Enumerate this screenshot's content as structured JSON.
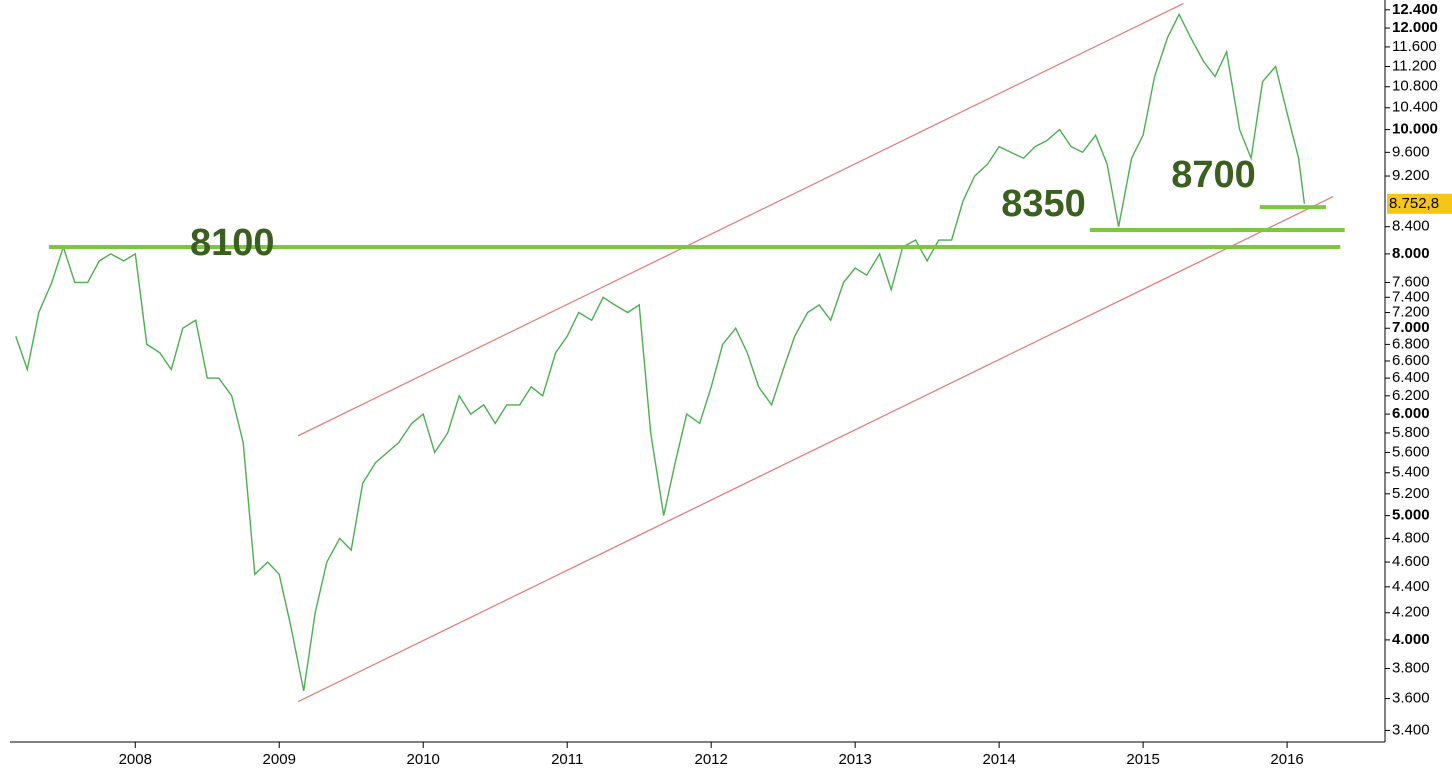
{
  "chart_data": {
    "type": "line",
    "log_scale": true,
    "xlim": [
      2007.13,
      2016.68
    ],
    "xticks": [
      2008,
      2009,
      2010,
      2011,
      2012,
      2013,
      2014,
      2015,
      2016
    ],
    "ylim": [
      3330,
      12620
    ],
    "yticks": [
      {
        "value": 3400,
        "label": "3.400"
      },
      {
        "value": 3600,
        "label": "3.600"
      },
      {
        "value": 3800,
        "label": "3.800"
      },
      {
        "value": 4000,
        "label": "4.000"
      },
      {
        "value": 4200,
        "label": "4.200"
      },
      {
        "value": 4400,
        "label": "4.400"
      },
      {
        "value": 4600,
        "label": "4.600"
      },
      {
        "value": 4800,
        "label": "4.800"
      },
      {
        "value": 5000,
        "label": "5.000"
      },
      {
        "value": 5200,
        "label": "5.200"
      },
      {
        "value": 5400,
        "label": "5.400"
      },
      {
        "value": 5600,
        "label": "5.600"
      },
      {
        "value": 5800,
        "label": "5.800"
      },
      {
        "value": 6000,
        "label": "6.000"
      },
      {
        "value": 6200,
        "label": "6.200"
      },
      {
        "value": 6400,
        "label": "6.400"
      },
      {
        "value": 6600,
        "label": "6.600"
      },
      {
        "value": 6800,
        "label": "6.800"
      },
      {
        "value": 7000,
        "label": "7.000"
      },
      {
        "value": 7200,
        "label": "7.200"
      },
      {
        "value": 7400,
        "label": "7.400"
      },
      {
        "value": 7600,
        "label": "7.600"
      },
      {
        "value": 8000,
        "label": "8.000"
      },
      {
        "value": 8400,
        "label": "8.400"
      },
      {
        "value": 9200,
        "label": "9.200"
      },
      {
        "value": 9600,
        "label": "9.600"
      },
      {
        "value": 10000,
        "label": "10.000"
      },
      {
        "value": 10400,
        "label": "10.400"
      },
      {
        "value": 10800,
        "label": "10.800"
      },
      {
        "value": 11200,
        "label": "11.200"
      },
      {
        "value": 11600,
        "label": "11.600"
      },
      {
        "value": 12000,
        "label": "12.000"
      },
      {
        "value": 12400,
        "label": "12.400"
      }
    ],
    "x": [
      2007.17,
      2007.25,
      2007.33,
      2007.42,
      2007.5,
      2007.58,
      2007.67,
      2007.75,
      2007.83,
      2007.92,
      2008.0,
      2008.08,
      2008.17,
      2008.25,
      2008.33,
      2008.42,
      2008.5,
      2008.58,
      2008.67,
      2008.75,
      2008.83,
      2008.92,
      2009.0,
      2009.08,
      2009.17,
      2009.25,
      2009.33,
      2009.42,
      2009.5,
      2009.58,
      2009.67,
      2009.75,
      2009.83,
      2009.92,
      2010.0,
      2010.08,
      2010.17,
      2010.25,
      2010.33,
      2010.42,
      2010.5,
      2010.58,
      2010.67,
      2010.75,
      2010.83,
      2010.92,
      2011.0,
      2011.08,
      2011.17,
      2011.25,
      2011.33,
      2011.42,
      2011.5,
      2011.58,
      2011.67,
      2011.75,
      2011.83,
      2011.92,
      2012.0,
      2012.08,
      2012.17,
      2012.25,
      2012.33,
      2012.42,
      2012.5,
      2012.58,
      2012.67,
      2012.75,
      2012.83,
      2012.92,
      2013.0,
      2013.08,
      2013.17,
      2013.25,
      2013.33,
      2013.42,
      2013.5,
      2013.58,
      2013.67,
      2013.75,
      2013.83,
      2013.92,
      2014.0,
      2014.08,
      2014.17,
      2014.25,
      2014.33,
      2014.42,
      2014.5,
      2014.58,
      2014.67,
      2014.75,
      2014.83,
      2014.92,
      2015.0,
      2015.08,
      2015.17,
      2015.25,
      2015.33,
      2015.42,
      2015.5,
      2015.58,
      2015.67,
      2015.75,
      2015.83,
      2015.92,
      2016.0,
      2016.08,
      2016.12
    ],
    "series": [
      {
        "color": "#4caf50",
        "values": [
          6900,
          6500,
          7200,
          7600,
          8100,
          7600,
          7600,
          7900,
          8000,
          7900,
          8000,
          6800,
          6700,
          6500,
          7000,
          7100,
          6400,
          6400,
          6200,
          5700,
          4500,
          4600,
          4500,
          4100,
          3650,
          4200,
          4600,
          4800,
          4700,
          5300,
          5500,
          5600,
          5700,
          5900,
          6000,
          5600,
          5800,
          6200,
          6000,
          6100,
          5900,
          6100,
          6100,
          6300,
          6200,
          6700,
          6900,
          7200,
          7100,
          7400,
          7300,
          7200,
          7300,
          5800,
          5000,
          5500,
          6000,
          5900,
          6300,
          6800,
          7000,
          6700,
          6300,
          6100,
          6500,
          6900,
          7200,
          7300,
          7100,
          7600,
          7800,
          7700,
          8000,
          7500,
          8100,
          8200,
          7900,
          8200,
          8200,
          8800,
          9200,
          9400,
          9700,
          9600,
          9500,
          9700,
          9800,
          10000,
          9700,
          9600,
          9900,
          9400,
          8400,
          9500,
          9900,
          11000,
          11800,
          12300,
          11800,
          11300,
          11000,
          11500,
          10000,
          9500,
          10900,
          11200,
          10300,
          9500,
          8753
        ]
      }
    ],
    "trendlines": [
      {
        "color": "#e08080",
        "x": [
          2009.13,
          2015.28
        ],
        "y": [
          5770,
          12540
        ]
      },
      {
        "color": "#e08080",
        "x": [
          2009.13,
          2016.32
        ],
        "y": [
          3580,
          8867
        ]
      }
    ],
    "levels": [
      {
        "label": "8100",
        "value": 8100,
        "x": [
          2007.4,
          2016.37
        ],
        "color": "#7cc83c"
      },
      {
        "label": "8350",
        "value": 8350,
        "x": [
          2014.63,
          2016.4
        ],
        "color": "#7cc83c"
      },
      {
        "label": "8700",
        "value": 8700,
        "x": [
          2015.81,
          2016.27
        ],
        "color": "#7cc83c"
      }
    ],
    "last_price": {
      "value": 8752.8,
      "label": "8.752,8",
      "color": "#f5c518"
    }
  }
}
